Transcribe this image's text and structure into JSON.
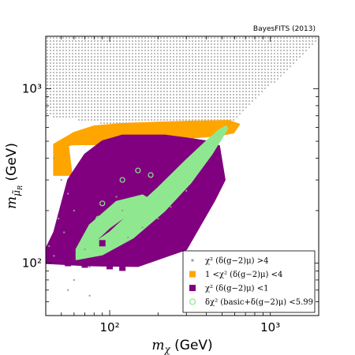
{
  "chart_data": {
    "type": "scatter",
    "annotation": "BayesFITS (2013)",
    "xlabel": "m_χ (GeV)",
    "ylabel": "m_μ̃R (GeV)",
    "xscale": "log",
    "yscale": "log",
    "xlim": [
      40,
      2000
    ],
    "ylim": [
      50,
      2000
    ],
    "x_ticks": [
      {
        "value": 100,
        "label": "10²"
      },
      {
        "value": 1000,
        "label": "10³"
      }
    ],
    "y_ticks": [
      {
        "value": 100,
        "label": "10²"
      },
      {
        "value": 1000,
        "label": "10³"
      }
    ],
    "legend_position": "lower-right",
    "colors": {
      "gray": "#9a9a9a",
      "orange": "#ffa500",
      "purple": "#800080",
      "green": "#8fe88f"
    },
    "series": [
      {
        "name": "χ² (δ(g−2)μ) > 4",
        "legend_text": "χ² (δ(g−2)μ) >4",
        "marker": "dot",
        "color": "#9a9a9a",
        "regions": [
          {
            "x": [
              40,
              2000,
              2000,
              640,
              450,
              40
            ],
            "y": [
              2000,
              2000,
              1900,
              700,
              520,
              700
            ]
          }
        ],
        "points": [
          [
            45,
            400
          ],
          [
            50,
            300
          ],
          [
            55,
            250
          ],
          [
            60,
            200
          ],
          [
            48,
            180
          ],
          [
            52,
            150
          ],
          [
            70,
            120
          ],
          [
            75,
            95
          ],
          [
            60,
            80
          ],
          [
            55,
            70
          ],
          [
            75,
            65
          ],
          [
            45,
            110
          ],
          [
            42,
            125
          ],
          [
            130,
            140
          ],
          [
            160,
            160
          ],
          [
            200,
            180
          ],
          [
            240,
            210
          ],
          [
            110,
            240
          ],
          [
            300,
            260
          ],
          [
            120,
            200
          ]
        ]
      },
      {
        "name": "1 < χ² (δ(g−2)μ) < 4",
        "legend_text": "1 <χ² (δ(g−2)μ) <4",
        "marker": "square",
        "color": "#ffa500",
        "regions": [
          {
            "x": [
              45,
              60,
              80,
              120,
              200,
              330,
              550,
              640,
              590,
              480,
              300,
              150,
              90,
              60,
              45
            ],
            "y": [
              480,
              560,
              610,
              630,
              640,
              650,
              655,
              625,
              560,
              540,
              520,
              490,
              480,
              480,
              460
            ]
          },
          {
            "x": [
              45,
              55,
              58,
              45
            ],
            "y": [
              470,
              480,
              320,
              320
            ]
          }
        ],
        "points": []
      },
      {
        "name": "χ² (δ(g−2)μ) < 1",
        "legend_text": "χ² (δ(g−2)μ) <1",
        "marker": "square",
        "color": "#800080",
        "regions": [
          {
            "x": [
              40,
              70,
              150,
              300,
              450,
              520,
              480,
              400,
              300,
              220,
              160,
              120,
              90,
              70,
              55,
              45,
              40
            ],
            "y": [
              100,
              97,
              96,
              120,
              230,
              300,
              470,
              500,
              520,
              540,
              540,
              540,
              500,
              420,
              300,
              150,
              120
            ]
          }
        ],
        "points": [
          [
            45,
            130
          ],
          [
            55,
            100
          ],
          [
            70,
            98
          ],
          [
            100,
            96
          ],
          [
            120,
            94
          ],
          [
            90,
            130
          ],
          [
            250,
            170
          ]
        ]
      },
      {
        "name": "δχ² (basic + δ(g−2)μ) < 5.99",
        "legend_text": "δχ² (basic+δ(g−2)μ) <5.99",
        "marker": "open-circle",
        "color": "#8fe88f",
        "regions": [
          {
            "x": [
              62,
              90,
              140,
              220,
              320,
              430,
              540,
              530,
              480,
              400,
              300,
              200,
              140,
              100,
              75,
              62
            ],
            "y": [
              105,
              112,
              140,
              200,
              290,
              420,
              590,
              610,
              580,
              500,
              390,
              270,
              200,
              150,
              125,
              110
            ]
          },
          {
            "x": [
              62,
              75,
              100,
              140,
              180,
              160,
              110,
              75,
              62
            ],
            "y": [
              110,
              125,
              160,
              200,
              230,
              245,
              225,
              165,
              120
            ]
          }
        ],
        "points": [
          [
            75,
            140
          ],
          [
            85,
            180
          ],
          [
            90,
            220
          ],
          [
            120,
            300
          ],
          [
            150,
            340
          ],
          [
            180,
            320
          ],
          [
            300,
            310
          ],
          [
            360,
            400
          ],
          [
            420,
            450
          ],
          [
            500,
            560
          ]
        ]
      }
    ]
  }
}
